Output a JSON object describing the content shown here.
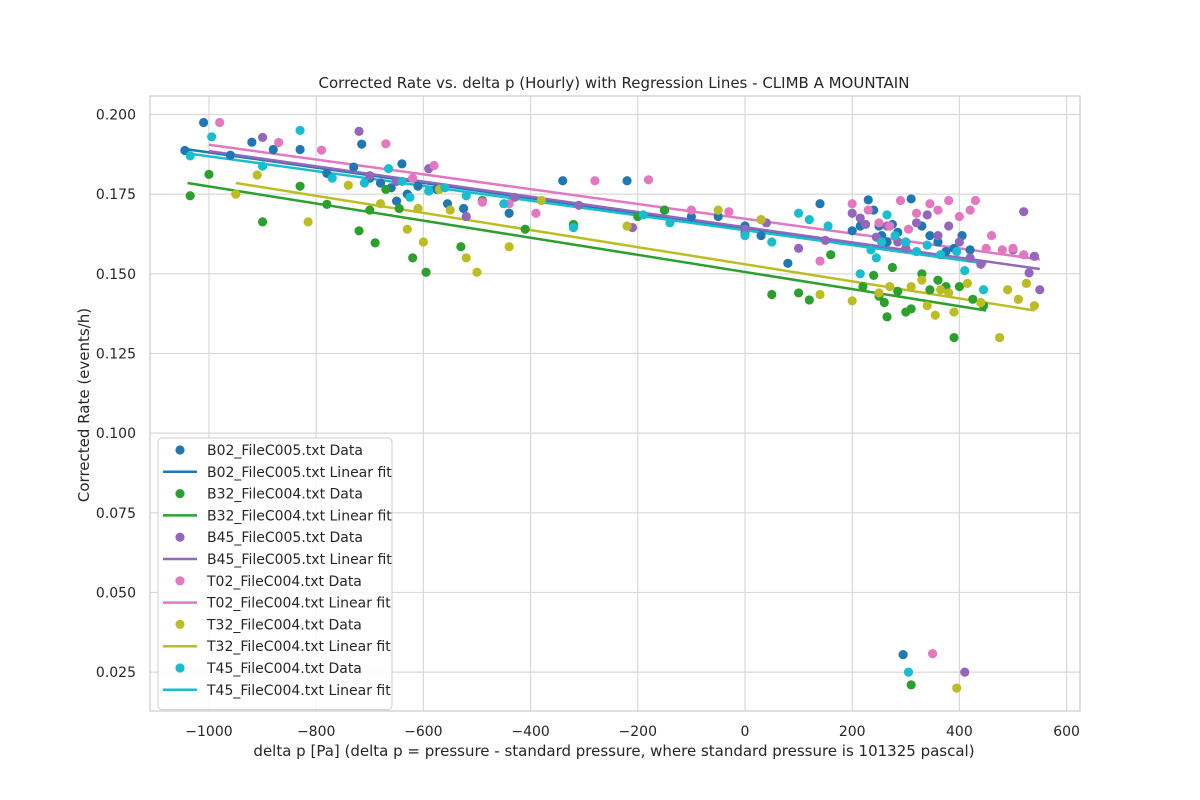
{
  "chart_data": {
    "type": "scatter",
    "title": "Corrected Rate vs. delta p (Hourly) with Regression Lines - CLIMB A MOUNTAIN",
    "xlabel": "delta p [Pa] (delta p = pressure - standard pressure, where standard pressure is 101325 pascal)",
    "ylabel": "Corrected Rate (events/h)",
    "xlim": [
      -1110,
      625
    ],
    "ylim": [
      0.0128,
      0.2058
    ],
    "xticks": [
      -1000,
      -800,
      -600,
      -400,
      -200,
      0,
      200,
      400,
      600
    ],
    "xtick_labels": [
      "−1000",
      "−800",
      "−600",
      "−400",
      "−200",
      "0",
      "200",
      "400",
      "600"
    ],
    "yticks": [
      0.025,
      0.05,
      0.075,
      0.1,
      0.125,
      0.15,
      0.175,
      0.2
    ],
    "ytick_labels": [
      "0.025",
      "0.050",
      "0.075",
      "0.100",
      "0.125",
      "0.150",
      "0.175",
      "0.200"
    ],
    "grid": true,
    "legend_position": "lower-left",
    "series": [
      {
        "name": "B02_FileC005.txt",
        "data_label": "B02_FileC005.txt Data",
        "fit_label": "B02_FileC005.txt Linear fit",
        "color": "#1f77b4",
        "fit": {
          "x": [
            -1050,
            450
          ],
          "y": [
            0.1893,
            0.1534
          ]
        },
        "points": [
          [
            -1045,
            0.1887
          ],
          [
            -1010,
            0.1975
          ],
          [
            -960,
            0.1872
          ],
          [
            -920,
            0.1913
          ],
          [
            -880,
            0.189
          ],
          [
            -830,
            0.189
          ],
          [
            -780,
            0.1815
          ],
          [
            -730,
            0.1835
          ],
          [
            -715,
            0.1907
          ],
          [
            -700,
            0.18
          ],
          [
            -680,
            0.1785
          ],
          [
            -660,
            0.177
          ],
          [
            -650,
            0.1728
          ],
          [
            -640,
            0.1845
          ],
          [
            -630,
            0.175
          ],
          [
            -610,
            0.1775
          ],
          [
            -590,
            0.176
          ],
          [
            -575,
            0.1765
          ],
          [
            -555,
            0.172
          ],
          [
            -525,
            0.1705
          ],
          [
            -440,
            0.169
          ],
          [
            -340,
            0.1792
          ],
          [
            -220,
            0.1792
          ],
          [
            -150,
            0.17
          ],
          [
            -100,
            0.168
          ],
          [
            -50,
            0.168
          ],
          [
            0,
            0.165
          ],
          [
            30,
            0.162
          ],
          [
            80,
            0.1533
          ],
          [
            140,
            0.172
          ],
          [
            200,
            0.1635
          ],
          [
            215,
            0.165
          ],
          [
            230,
            0.1732
          ],
          [
            240,
            0.17
          ],
          [
            250,
            0.165
          ],
          [
            255,
            0.162
          ],
          [
            265,
            0.16
          ],
          [
            275,
            0.1655
          ],
          [
            285,
            0.163
          ],
          [
            300,
            0.16
          ],
          [
            310,
            0.1735
          ],
          [
            330,
            0.165
          ],
          [
            345,
            0.162
          ],
          [
            360,
            0.16
          ],
          [
            375,
            0.157
          ],
          [
            390,
            0.158
          ],
          [
            405,
            0.162
          ],
          [
            420,
            0.1575
          ],
          [
            295,
            0.0305
          ]
        ]
      },
      {
        "name": "B32_FileC004.txt",
        "data_label": "B32_FileC004.txt Data",
        "fit_label": "B32_FileC004.txt Linear fit",
        "color": "#2ca02c",
        "fit": {
          "x": [
            -1040,
            450
          ],
          "y": [
            0.1785,
            0.1385
          ]
        },
        "points": [
          [
            -1035,
            0.1745
          ],
          [
            -1000,
            0.1812
          ],
          [
            -900,
            0.1663
          ],
          [
            -830,
            0.1775
          ],
          [
            -780,
            0.1718
          ],
          [
            -720,
            0.1635
          ],
          [
            -700,
            0.17
          ],
          [
            -690,
            0.1597
          ],
          [
            -670,
            0.1765
          ],
          [
            -645,
            0.1705
          ],
          [
            -620,
            0.155
          ],
          [
            -595,
            0.1505
          ],
          [
            -530,
            0.1585
          ],
          [
            -490,
            0.173
          ],
          [
            -410,
            0.164
          ],
          [
            -320,
            0.1655
          ],
          [
            -200,
            0.168
          ],
          [
            -150,
            0.17
          ],
          [
            0,
            0.163
          ],
          [
            50,
            0.1435
          ],
          [
            100,
            0.144
          ],
          [
            120,
            0.1418
          ],
          [
            160,
            0.156
          ],
          [
            220,
            0.146
          ],
          [
            240,
            0.1495
          ],
          [
            250,
            0.143
          ],
          [
            260,
            0.141
          ],
          [
            265,
            0.1365
          ],
          [
            275,
            0.152
          ],
          [
            285,
            0.1445
          ],
          [
            300,
            0.138
          ],
          [
            310,
            0.139
          ],
          [
            330,
            0.15
          ],
          [
            345,
            0.145
          ],
          [
            360,
            0.148
          ],
          [
            375,
            0.146
          ],
          [
            390,
            0.13
          ],
          [
            400,
            0.146
          ],
          [
            425,
            0.142
          ],
          [
            445,
            0.14
          ],
          [
            310,
            0.021
          ]
        ]
      },
      {
        "name": "B45_FileC005.txt",
        "data_label": "B45_FileC005.txt Data",
        "fit_label": "B45_FileC005.txt Linear fit",
        "color": "#9467bd",
        "fit": {
          "x": [
            -1000,
            550
          ],
          "y": [
            0.1885,
            0.1515
          ]
        },
        "points": [
          [
            -900,
            0.1928
          ],
          [
            -720,
            0.1947
          ],
          [
            -700,
            0.1808
          ],
          [
            -650,
            0.179
          ],
          [
            -590,
            0.183
          ],
          [
            -520,
            0.168
          ],
          [
            -430,
            0.174
          ],
          [
            -310,
            0.1715
          ],
          [
            -210,
            0.1645
          ],
          [
            0,
            0.164
          ],
          [
            40,
            0.166
          ],
          [
            100,
            0.158
          ],
          [
            150,
            0.1605
          ],
          [
            200,
            0.169
          ],
          [
            215,
            0.1675
          ],
          [
            225,
            0.1655
          ],
          [
            245,
            0.1615
          ],
          [
            265,
            0.165
          ],
          [
            285,
            0.16
          ],
          [
            300,
            0.158
          ],
          [
            320,
            0.166
          ],
          [
            340,
            0.1685
          ],
          [
            360,
            0.162
          ],
          [
            380,
            0.165
          ],
          [
            400,
            0.16
          ],
          [
            420,
            0.155
          ],
          [
            440,
            0.153
          ],
          [
            500,
            0.1575
          ],
          [
            520,
            0.1695
          ],
          [
            530,
            0.1503
          ],
          [
            540,
            0.1555
          ],
          [
            550,
            0.145
          ],
          [
            410,
            0.025
          ]
        ]
      },
      {
        "name": "T02_FileC004.txt",
        "data_label": "T02_FileC004.txt Data",
        "fit_label": "T02_FileC004.txt Linear fit",
        "color": "#e377c2",
        "fit": {
          "x": [
            -1000,
            550
          ],
          "y": [
            0.1905,
            0.1545
          ]
        },
        "points": [
          [
            -980,
            0.1975
          ],
          [
            -870,
            0.1912
          ],
          [
            -790,
            0.1888
          ],
          [
            -670,
            0.1908
          ],
          [
            -620,
            0.18
          ],
          [
            -580,
            0.184
          ],
          [
            -490,
            0.1725
          ],
          [
            -440,
            0.172
          ],
          [
            -390,
            0.169
          ],
          [
            -280,
            0.1792
          ],
          [
            -180,
            0.1795
          ],
          [
            -100,
            0.17
          ],
          [
            -30,
            0.1695
          ],
          [
            30,
            0.167
          ],
          [
            140,
            0.154
          ],
          [
            200,
            0.172
          ],
          [
            230,
            0.17
          ],
          [
            250,
            0.166
          ],
          [
            270,
            0.165
          ],
          [
            290,
            0.173
          ],
          [
            305,
            0.164
          ],
          [
            320,
            0.169
          ],
          [
            345,
            0.172
          ],
          [
            360,
            0.17
          ],
          [
            380,
            0.173
          ],
          [
            400,
            0.168
          ],
          [
            420,
            0.17
          ],
          [
            430,
            0.173
          ],
          [
            450,
            0.158
          ],
          [
            460,
            0.162
          ],
          [
            480,
            0.1575
          ],
          [
            500,
            0.158
          ],
          [
            520,
            0.156
          ],
          [
            350,
            0.0308
          ]
        ]
      },
      {
        "name": "T32_FileC004.txt",
        "data_label": "T32_FileC004.txt Data",
        "fit_label": "T32_FileC004.txt Linear fit",
        "color": "#bcbd22",
        "fit": {
          "x": [
            -950,
            540
          ],
          "y": [
            0.1785,
            0.1385
          ]
        },
        "points": [
          [
            -950,
            0.175
          ],
          [
            -910,
            0.181
          ],
          [
            -815,
            0.1663
          ],
          [
            -740,
            0.1778
          ],
          [
            -680,
            0.172
          ],
          [
            -630,
            0.164
          ],
          [
            -610,
            0.1705
          ],
          [
            -600,
            0.16
          ],
          [
            -570,
            0.1765
          ],
          [
            -550,
            0.17
          ],
          [
            -520,
            0.155
          ],
          [
            -500,
            0.1505
          ],
          [
            -440,
            0.1585
          ],
          [
            -380,
            0.173
          ],
          [
            -220,
            0.165
          ],
          [
            -50,
            0.17
          ],
          [
            30,
            0.167
          ],
          [
            140,
            0.1435
          ],
          [
            200,
            0.1415
          ],
          [
            250,
            0.144
          ],
          [
            270,
            0.146
          ],
          [
            310,
            0.146
          ],
          [
            330,
            0.148
          ],
          [
            340,
            0.14
          ],
          [
            355,
            0.137
          ],
          [
            365,
            0.145
          ],
          [
            380,
            0.144
          ],
          [
            390,
            0.138
          ],
          [
            415,
            0.147
          ],
          [
            440,
            0.141
          ],
          [
            475,
            0.13
          ],
          [
            490,
            0.145
          ],
          [
            510,
            0.142
          ],
          [
            525,
            0.147
          ],
          [
            540,
            0.14
          ],
          [
            395,
            0.02
          ]
        ]
      },
      {
        "name": "T45_FileC004.txt",
        "data_label": "T45_FileC004.txt Data",
        "fit_label": "T45_FileC004.txt Linear fit",
        "color": "#17becf",
        "fit": {
          "x": [
            -1040,
            450
          ],
          "y": [
            0.1878,
            0.1532
          ]
        },
        "points": [
          [
            -1035,
            0.187
          ],
          [
            -995,
            0.193
          ],
          [
            -900,
            0.1838
          ],
          [
            -830,
            0.195
          ],
          [
            -770,
            0.18
          ],
          [
            -710,
            0.1785
          ],
          [
            -665,
            0.183
          ],
          [
            -640,
            0.179
          ],
          [
            -625,
            0.174
          ],
          [
            -590,
            0.176
          ],
          [
            -560,
            0.177
          ],
          [
            -520,
            0.1745
          ],
          [
            -450,
            0.172
          ],
          [
            -320,
            0.1645
          ],
          [
            -190,
            0.1685
          ],
          [
            -140,
            0.166
          ],
          [
            0,
            0.162
          ],
          [
            50,
            0.16
          ],
          [
            100,
            0.169
          ],
          [
            120,
            0.167
          ],
          [
            155,
            0.165
          ],
          [
            215,
            0.15
          ],
          [
            235,
            0.1575
          ],
          [
            245,
            0.155
          ],
          [
            255,
            0.16
          ],
          [
            265,
            0.1685
          ],
          [
            280,
            0.162
          ],
          [
            300,
            0.16
          ],
          [
            320,
            0.157
          ],
          [
            340,
            0.159
          ],
          [
            365,
            0.156
          ],
          [
            395,
            0.157
          ],
          [
            410,
            0.151
          ],
          [
            445,
            0.145
          ],
          [
            305,
            0.025
          ]
        ]
      }
    ]
  }
}
